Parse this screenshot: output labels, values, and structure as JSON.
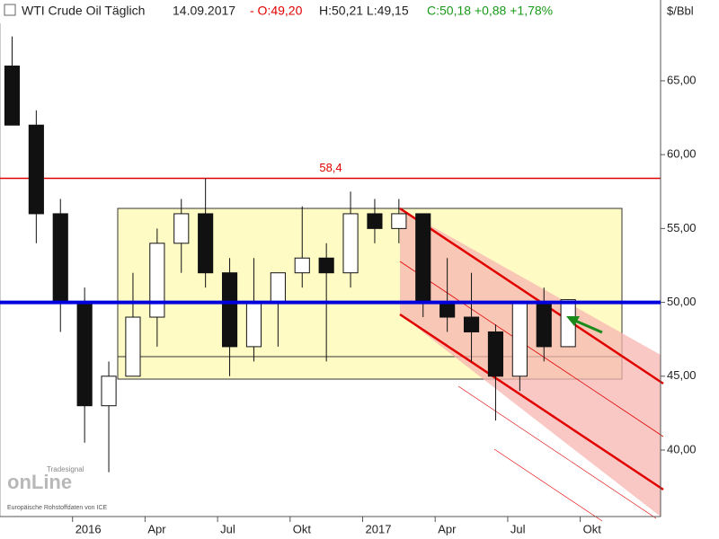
{
  "chart_data": {
    "type": "candlestick",
    "title": "WTI Crude Oil Täglich",
    "date": "14.09.2017",
    "open_text": "- O:49,20",
    "high_low_text": "H:50,21 L:49,15",
    "change_text": "C:50,18 +0,88 +1,78%",
    "unit": "$/Bbl",
    "brand": "Tradesignal",
    "logo": "onLine",
    "source": "Europäische Rohstoffdaten von ICE",
    "x": [
      "2015-10",
      "2015-11",
      "2015-12",
      "2016-01",
      "2016-02",
      "2016-03",
      "2016-04",
      "2016-05",
      "2016-06",
      "2016-07",
      "2016-08",
      "2016-09",
      "2016-10",
      "2016-11",
      "2016-12",
      "2017-01",
      "2017-02",
      "2017-03",
      "2017-04",
      "2017-05",
      "2017-06",
      "2017-07",
      "2017-08",
      "2017-09"
    ],
    "open": [
      66,
      62,
      56,
      50,
      43,
      45,
      49,
      54,
      56,
      52,
      47,
      50,
      52,
      53,
      52,
      56,
      55,
      56,
      50,
      49,
      48,
      45,
      50,
      47
    ],
    "high": [
      68,
      63,
      57,
      51,
      46,
      52,
      55,
      57,
      58.4,
      53,
      53,
      52,
      56.5,
      54,
      57.5,
      57,
      57,
      56,
      53,
      52,
      48.5,
      50,
      51,
      50.21
    ],
    "low": [
      62,
      54,
      48,
      40.5,
      38.5,
      45,
      47,
      52,
      51,
      45,
      46,
      47,
      51,
      46,
      51,
      54,
      54,
      49,
      48,
      46,
      42,
      44,
      46,
      47
    ],
    "close": [
      62,
      56,
      50,
      43,
      45,
      49,
      54,
      56,
      52,
      47,
      50,
      52,
      53,
      52,
      56,
      55,
      56,
      50,
      49,
      48,
      45,
      50,
      47,
      50.18
    ],
    "up_color": "#ffffff",
    "down_color": "#111111",
    "ylim": [
      35.5,
      70.47
    ],
    "yticks": [
      {
        "value": 40,
        "label": "40,00"
      },
      {
        "value": 45,
        "label": "45,00"
      },
      {
        "value": 50,
        "label": "50,00"
      },
      {
        "value": 55,
        "label": "55,00"
      },
      {
        "value": 60,
        "label": "60,00"
      },
      {
        "value": 65,
        "label": "65,00"
      }
    ],
    "xticks": [
      {
        "value": "2016-01",
        "label": "2016"
      },
      {
        "value": "2016-04",
        "label": "Apr"
      },
      {
        "value": "2016-07",
        "label": "Jul"
      },
      {
        "value": "2016-10",
        "label": "Okt"
      },
      {
        "value": "2017-01",
        "label": "2017"
      },
      {
        "value": "2017-04",
        "label": "Apr"
      },
      {
        "value": "2017-07",
        "label": "Jul"
      },
      {
        "value": "2017-10",
        "label": "Okt"
      }
    ],
    "hlines": [
      {
        "value": 58.4,
        "label": "58,4",
        "color": "#e00000"
      },
      {
        "value": 50,
        "color": "#0000dd"
      }
    ]
  }
}
